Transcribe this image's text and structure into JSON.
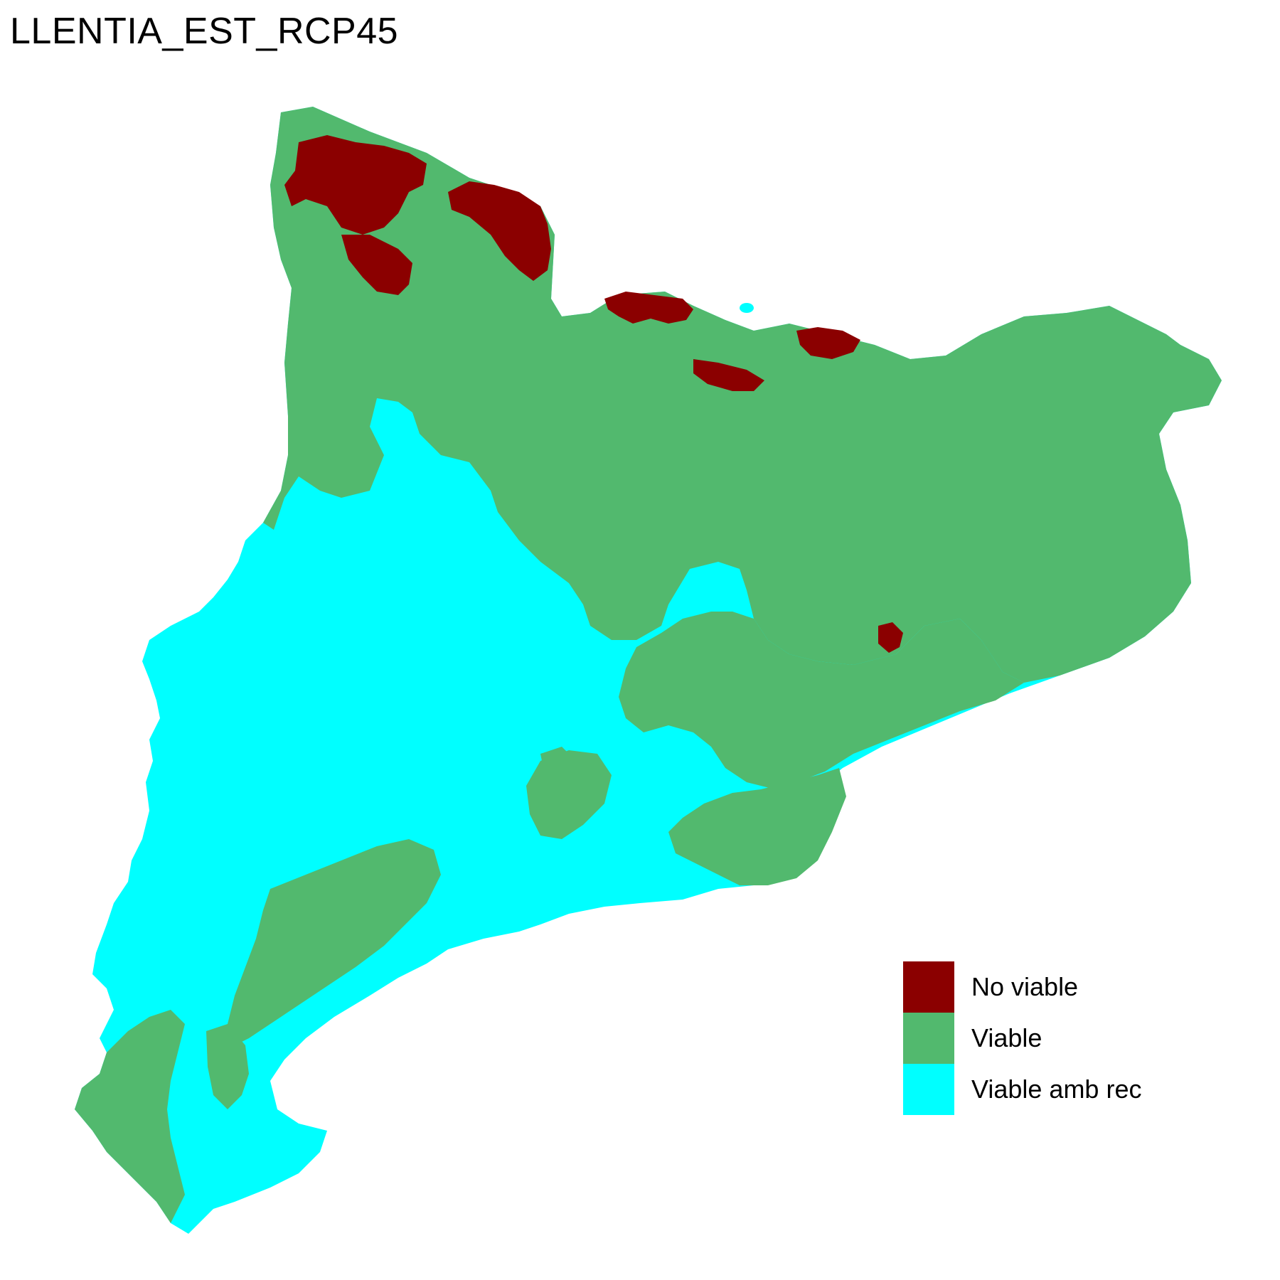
{
  "map": {
    "title": "LLENTIA_EST_RCP45"
  },
  "legend": {
    "items": [
      {
        "label": "No viable",
        "color": "#8B0000"
      },
      {
        "label": "Viable",
        "color": "#52B96E"
      },
      {
        "label": "Viable amb rec",
        "color": "#00FFFF"
      }
    ]
  }
}
